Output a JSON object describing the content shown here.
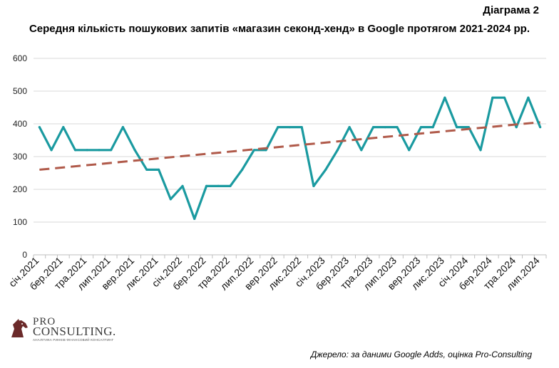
{
  "diagram_label": "Діаграма 2",
  "title": "Середня кількість пошукових запитів «магазин секонд-хенд» в Google протягом 2021-2024  рр.",
  "source": "Джерело: за даними Google Adds, оцінка Pro-Consulting",
  "logo": {
    "pro": "PRO",
    "main": "CONSULTING.",
    "sub": "АНАЛІТИКА РИНКІВ ФІНАНСОВИЙ КОНСАЛТИНГ",
    "icon": "horse-head-icon"
  },
  "colors": {
    "series": "#1a9aa0",
    "trend": "#b05a4a",
    "grid": "#d9d9d9"
  },
  "chart_data": {
    "type": "line",
    "title": "Середня кількість пошукових запитів «магазин секонд-хенд» в Google протягом 2021-2024  рр.",
    "xlabel": "",
    "ylabel": "",
    "ylim": [
      0,
      600
    ],
    "yticks": [
      "0",
      "100",
      "200",
      "300",
      "400",
      "500",
      "600"
    ],
    "grid": true,
    "legend": "none",
    "x": [
      "січ.2021",
      "лют.2021",
      "бер.2021",
      "кві.2021",
      "тра.2021",
      "чер.2021",
      "лип.2021",
      "сер.2021",
      "вер.2021",
      "жов.2021",
      "лис.2021",
      "гру.2021",
      "січ.2022",
      "лют.2022",
      "бер.2022",
      "кві.2022",
      "тра.2022",
      "чер.2022",
      "лип.2022",
      "сер.2022",
      "вер.2022",
      "жов.2022",
      "лис.2022",
      "гру.2022",
      "січ.2023",
      "лют.2023",
      "бер.2023",
      "кві.2023",
      "тра.2023",
      "чер.2023",
      "лип.2023",
      "сер.2023",
      "вер.2023",
      "жов.2023",
      "лис.2023",
      "гру.2023",
      "січ.2024",
      "лют.2024",
      "бер.2024",
      "кві.2024",
      "тра.2024",
      "чер.2024",
      "лип.2024"
    ],
    "xtick_labels": [
      "січ.2021",
      "бер.2021",
      "тра.2021",
      "лип.2021",
      "вер.2021",
      "лис.2021",
      "січ.2022",
      "бер.2022",
      "тра.2022",
      "лип.2022",
      "вер.2022",
      "лис.2022",
      "січ.2023",
      "бер.2023",
      "тра.2023",
      "лип.2023",
      "вер.2023",
      "лис.2023",
      "січ.2024",
      "бер.2024",
      "тра.2024",
      "лип.2024"
    ],
    "series": [
      {
        "values": [
          390,
          320,
          390,
          320,
          320,
          320,
          320,
          390,
          320,
          260,
          260,
          170,
          210,
          110,
          210,
          210,
          210,
          260,
          320,
          320,
          390,
          390,
          390,
          210,
          260,
          320,
          390,
          320,
          390,
          390,
          390,
          320,
          390,
          390,
          480,
          390,
          390,
          320,
          480,
          480,
          390,
          480,
          390
        ]
      }
    ],
    "trendline": {
      "type": "linear",
      "style": "dashed",
      "start": 260,
      "end": 405
    }
  }
}
